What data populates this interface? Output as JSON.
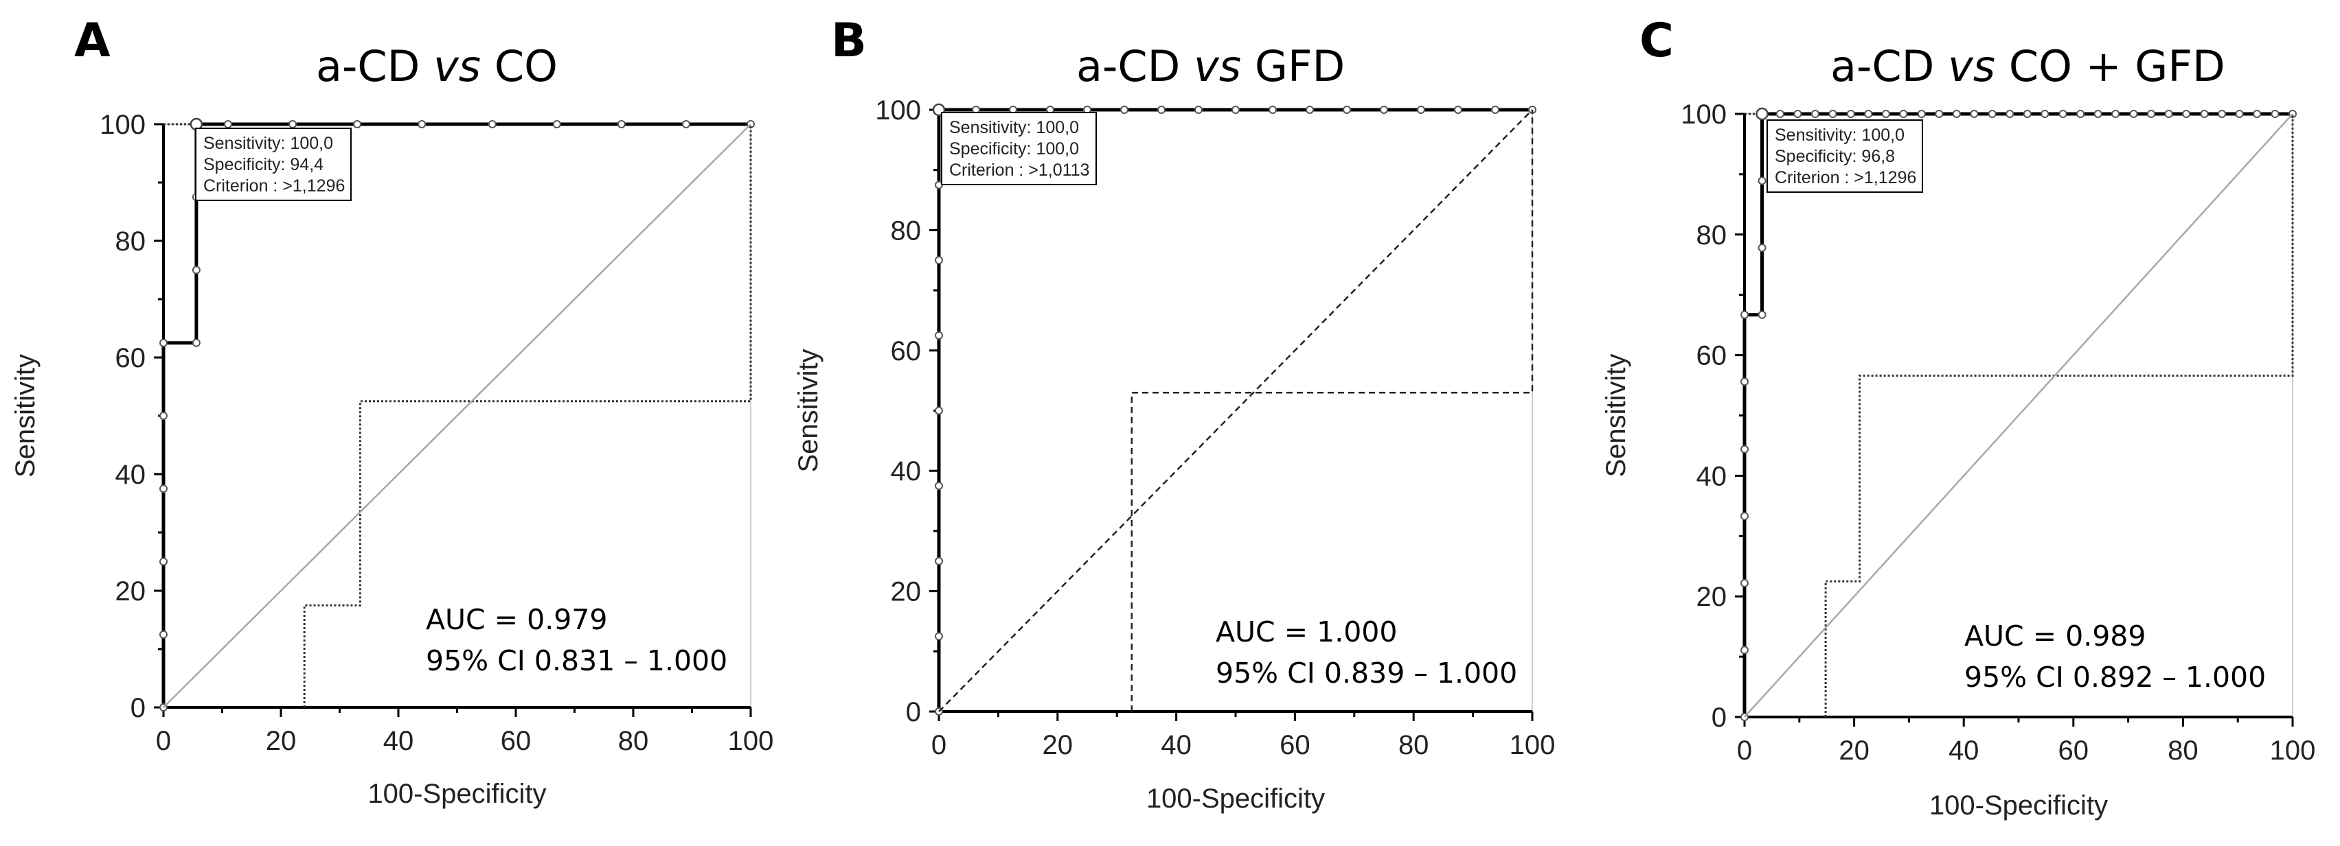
{
  "chart_data": [
    {
      "type": "line",
      "panel_label": "A",
      "title": {
        "left": "a-CD ",
        "vs": "vs",
        "right": " CO"
      },
      "xlabel": "100-Specificity",
      "ylabel": "Sensitivity",
      "xlim": [
        0,
        100
      ],
      "ylim": [
        0,
        100
      ],
      "xticks": [
        0,
        20,
        40,
        60,
        80,
        100
      ],
      "yticks": [
        0,
        20,
        40,
        60,
        80,
        100
      ],
      "series": [
        {
          "name": "ROC curve",
          "style": "solid-bold",
          "x": [
            0,
            0,
            0,
            0,
            0,
            0,
            5.6,
            5.6,
            5.6,
            5.6,
            5.6,
            100
          ],
          "y": [
            0,
            12.5,
            25,
            37.5,
            50,
            62.5,
            62.5,
            75,
            87.5,
            100,
            100,
            100
          ],
          "markers_x": [
            0,
            0,
            0,
            0,
            0,
            0,
            5.6,
            5.6,
            5.6,
            5.6,
            11,
            22,
            33,
            44,
            56,
            67,
            78,
            89,
            100
          ],
          "markers_y": [
            0,
            12.5,
            25,
            37.5,
            50,
            62.5,
            62.5,
            75,
            87.5,
            100,
            100,
            100,
            100,
            100,
            100,
            100,
            100,
            100,
            100
          ]
        },
        {
          "name": "Lower 95% CI",
          "style": "dotted",
          "x": [
            24,
            24,
            33.5,
            33.5,
            100,
            100
          ],
          "y": [
            0,
            17.5,
            17.5,
            52.5,
            52.5,
            100
          ]
        },
        {
          "name": "Upper 95% CI",
          "style": "dotted",
          "x": [
            0,
            5.6
          ],
          "y": [
            100,
            100
          ]
        },
        {
          "name": "Reference line",
          "style": "diagonal",
          "x": [
            0,
            100
          ],
          "y": [
            0,
            100
          ]
        }
      ],
      "optimal_point": {
        "x": 5.6,
        "y": 100
      },
      "criterion_box": {
        "sensitivity": "Sensitivity: 100,0",
        "specificity": "Specificity: 94,4",
        "criterion": "Criterion : >1,1296"
      },
      "auc": "AUC = 0.979",
      "ci": "95% CI 0.831 – 1.000"
    },
    {
      "type": "line",
      "panel_label": "B",
      "title": {
        "left": "a-CD ",
        "vs": "vs",
        "right": " GFD"
      },
      "xlabel": "100-Specificity",
      "ylabel": "Sensitivity",
      "xlim": [
        0,
        100
      ],
      "ylim": [
        0,
        100
      ],
      "xticks": [
        0,
        20,
        40,
        60,
        80,
        100
      ],
      "yticks": [
        0,
        20,
        40,
        60,
        80,
        100
      ],
      "series": [
        {
          "name": "ROC curve",
          "style": "solid-bold",
          "x": [
            0,
            0,
            100
          ],
          "y": [
            0,
            100,
            100
          ],
          "markers_x": [
            0,
            0,
            0,
            0,
            0,
            0,
            0,
            0,
            0,
            6.25,
            12.5,
            18.75,
            25,
            31.25,
            37.5,
            43.75,
            50,
            56.25,
            62.5,
            68.75,
            75,
            81.25,
            87.5,
            93.75,
            100
          ],
          "markers_y": [
            0,
            12.5,
            25,
            37.5,
            50,
            62.5,
            75,
            87.5,
            100,
            100,
            100,
            100,
            100,
            100,
            100,
            100,
            100,
            100,
            100,
            100,
            100,
            100,
            100,
            100,
            100
          ]
        },
        {
          "name": "Lower 95% CI",
          "style": "dashed",
          "x": [
            32.5,
            32.5,
            100,
            100
          ],
          "y": [
            0,
            53,
            53,
            100
          ]
        },
        {
          "name": "Reference line",
          "style": "dashed",
          "x": [
            0,
            100
          ],
          "y": [
            0,
            100
          ]
        }
      ],
      "optimal_point": {
        "x": 0,
        "y": 100
      },
      "criterion_box": {
        "sensitivity": "Sensitivity: 100,0",
        "specificity": "Specificity: 100,0",
        "criterion": "Criterion : >1,0113"
      },
      "auc": "AUC = 1.000",
      "ci": "95% CI 0.839 – 1.000"
    },
    {
      "type": "line",
      "panel_label": "C",
      "title": {
        "left": "a-CD ",
        "vs": "vs",
        "right": " CO + GFD"
      },
      "xlabel": "100-Specificity",
      "ylabel": "Sensitivity",
      "xlim": [
        0,
        100
      ],
      "ylim": [
        0,
        100
      ],
      "xticks": [
        0,
        20,
        40,
        60,
        80,
        100
      ],
      "yticks": [
        0,
        20,
        40,
        60,
        80,
        100
      ],
      "series": [
        {
          "name": "ROC curve",
          "style": "solid-bold",
          "x": [
            0,
            0,
            3.2,
            3.2,
            100
          ],
          "y": [
            0,
            66.7,
            66.7,
            100,
            100
          ],
          "markers_x": [
            0,
            0,
            0,
            0,
            0,
            0,
            0,
            3.2,
            3.2,
            3.2,
            3.2,
            6.5,
            9.7,
            12.9,
            16.1,
            19.4,
            22.6,
            25.8,
            29,
            32.3,
            35.5,
            38.7,
            41.9,
            45.2,
            48.4,
            51.6,
            54.8,
            58.1,
            61.3,
            64.5,
            67.7,
            71,
            74.2,
            77.4,
            80.6,
            83.9,
            87.1,
            90.3,
            93.5,
            96.8,
            100
          ],
          "markers_y": [
            0,
            11.1,
            22.2,
            33.3,
            44.4,
            55.6,
            66.7,
            66.7,
            77.8,
            88.9,
            100,
            100,
            100,
            100,
            100,
            100,
            100,
            100,
            100,
            100,
            100,
            100,
            100,
            100,
            100,
            100,
            100,
            100,
            100,
            100,
            100,
            100,
            100,
            100,
            100,
            100,
            100,
            100,
            100,
            100,
            100
          ]
        },
        {
          "name": "Lower 95% CI",
          "style": "dotted",
          "x": [
            14.8,
            14.8,
            21,
            21,
            100,
            100
          ],
          "y": [
            0,
            22.5,
            22.5,
            56.6,
            56.6,
            100
          ]
        },
        {
          "name": "Upper 95% CI",
          "style": "dotted",
          "x": [
            0,
            3.2
          ],
          "y": [
            100,
            100
          ]
        },
        {
          "name": "Reference line",
          "style": "diagonal",
          "x": [
            0,
            100
          ],
          "y": [
            0,
            100
          ]
        }
      ],
      "optimal_point": {
        "x": 3.2,
        "y": 100
      },
      "criterion_box": {
        "sensitivity": "Sensitivity: 100,0",
        "specificity": "Specificity: 96,8",
        "criterion": "Criterion : >1,1296"
      },
      "auc": "AUC = 0.989",
      "ci": "95% CI 0.892 – 1.000"
    }
  ]
}
